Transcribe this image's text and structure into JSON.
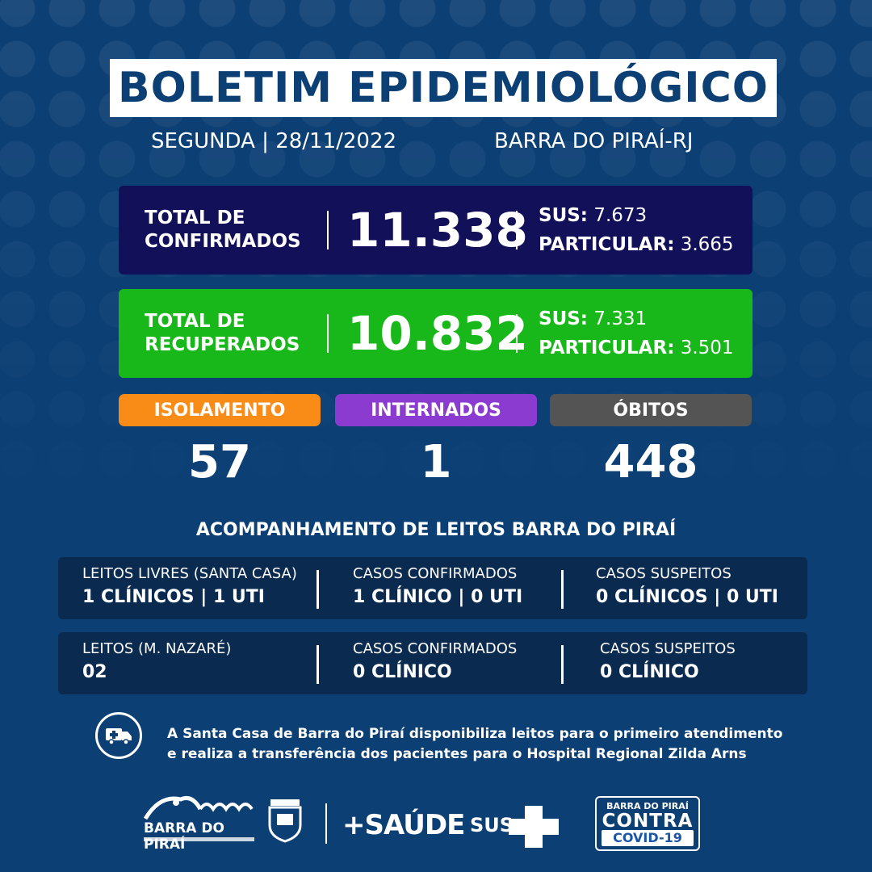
{
  "header": {
    "title": "BOLETIM EPIDEMIOLÓGICO",
    "date": "SEGUNDA | 28/11/2022",
    "location": "BARRA DO PIRAÍ-RJ"
  },
  "confirmed": {
    "label_line1": "TOTAL DE",
    "label_line2": "CONFIRMADOS",
    "total": "11.338",
    "sus_label": "SUS:",
    "sus_value": "7.673",
    "private_label": "PARTICULAR:",
    "private_value": "3.665",
    "color": "#13105a"
  },
  "recovered": {
    "label_line1": "TOTAL DE",
    "label_line2": "RECUPERADOS",
    "total": "10.832",
    "sus_label": "SUS:",
    "sus_value": "7.331",
    "private_label": "PARTICULAR:",
    "private_value": "3.501",
    "color": "#19b81a"
  },
  "stats": [
    {
      "label": "ISOLAMENTO",
      "value": "57",
      "color": "#f98c16"
    },
    {
      "label": "INTERNADOS",
      "value": "1",
      "color": "#8b3bcf"
    },
    {
      "label": "ÓBITOS",
      "value": "448",
      "color": "#545454"
    }
  ],
  "beds": {
    "section_title": "ACOMPANHAMENTO DE LEITOS BARRA DO PIRAÍ",
    "rows": [
      {
        "cols": [
          {
            "heading": "LEITOS LIVRES (SANTA CASA)",
            "value": "1 CLÍNICOS | 1 UTI"
          },
          {
            "heading": "CASOS CONFIRMADOS",
            "value": "1 CLÍNICO | 0 UTI"
          },
          {
            "heading": "CASOS SUSPEITOS",
            "value": "0 CLÍNICOS | 0 UTI"
          }
        ]
      },
      {
        "cols": [
          {
            "heading": "LEITOS (M. NAZARÉ)",
            "value": "02"
          },
          {
            "heading": "CASOS CONFIRMADOS",
            "value": "0 CLÍNICO"
          },
          {
            "heading": "CASOS SUSPEITOS",
            "value": "0 CLÍNICO"
          }
        ]
      }
    ]
  },
  "notice": {
    "icon": "ambulance-icon",
    "line1": "A Santa Casa de Barra do Piraí disponibiliza leitos para o primeiro atendimento",
    "line2": "e realiza a transferência dos pacientes para o Hospital Regional Zilda Arns"
  },
  "footer": {
    "prefeitura_name": "BARRA DO PIRAÍ",
    "saude_logo": "+SAÚDE",
    "sus_logo": "SUS",
    "covid_line1": "BARRA DO PIRAÍ",
    "covid_line2": "CONTRA",
    "covid_line3": "COVID-19"
  },
  "colors": {
    "background": "#0c3f74",
    "bed_box": "#0a2a50"
  }
}
